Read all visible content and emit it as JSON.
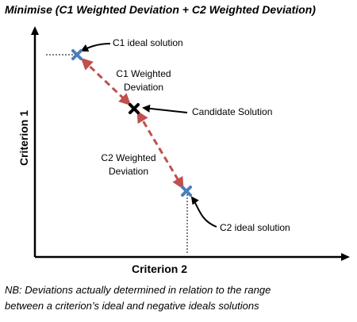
{
  "title": "Minimise (C1 Weighted Deviation + C2 Weighted Deviation)",
  "x_axis_label": "Criterion 2",
  "y_axis_label": "Criterion 1",
  "labels": {
    "c1_ideal": "C1 ideal solution",
    "c1_deviation_line1": "C1 Weighted",
    "c1_deviation_line2": "Deviation",
    "candidate": "Candidate Solution",
    "c2_deviation_line1": "C2 Weighted",
    "c2_deviation_line2": "Deviation",
    "c2_ideal": "C2 ideal solution"
  },
  "note": {
    "line1": "NB: Deviations actually determined in relation to the range",
    "line2": "between a criterion’s ideal and negative ideals solutions"
  },
  "colors": {
    "ideal_marker": "#4a7ebb",
    "candidate_marker": "#000000",
    "deviation_line": "#c0504d",
    "axis": "#000000"
  }
}
